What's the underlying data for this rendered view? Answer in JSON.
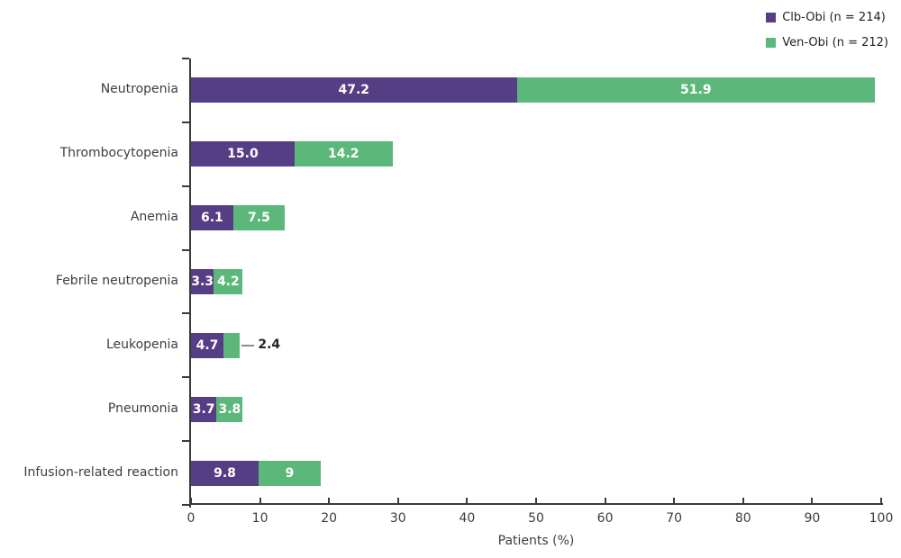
{
  "legend": {
    "items": [
      {
        "label": "Clb-Obi (n = 214)",
        "color": "#563e85"
      },
      {
        "label": "Ven-Obi (n = 212)",
        "color": "#5cb87a"
      }
    ]
  },
  "chart_data": {
    "type": "bar",
    "orientation": "horizontal",
    "stacked": true,
    "title": "",
    "xlabel": "Patients (%)",
    "ylabel": "",
    "xlim": [
      0,
      100
    ],
    "xticks": [
      0,
      10,
      20,
      30,
      40,
      50,
      60,
      70,
      80,
      90,
      100
    ],
    "grid": false,
    "legend_position": "top-right",
    "categories": [
      "Neutropenia",
      "Thrombocytopenia",
      "Anemia",
      "Febrile neutropenia",
      "Leukopenia",
      "Pneumonia",
      "Infusion-related reaction"
    ],
    "series": [
      {
        "name": "Clb-Obi (n = 214)",
        "color": "#563e85",
        "values": [
          47.2,
          15.0,
          6.1,
          3.3,
          4.7,
          3.7,
          9.8
        ],
        "labels": [
          "47.2",
          "15.0",
          "6.1",
          "3.3",
          "4.7",
          "3.7",
          "9.8"
        ]
      },
      {
        "name": "Ven-Obi (n = 212)",
        "color": "#5cb87a",
        "values": [
          51.9,
          14.2,
          7.5,
          4.2,
          2.4,
          3.8,
          9
        ],
        "labels": [
          "51.9",
          "14.2",
          "7.5",
          "4.2",
          "2.4",
          "3.8",
          "9"
        ]
      }
    ],
    "outside_value_labels": [
      {
        "series_index": 1,
        "category_index": 4,
        "label": "2.4"
      }
    ],
    "colors": {
      "axis": "#3a3a3a",
      "text": "#3d3d3d",
      "value_label_inside": "#ffffff",
      "value_label_outside": "#262626",
      "leader_line": "#8c8c8c"
    }
  }
}
